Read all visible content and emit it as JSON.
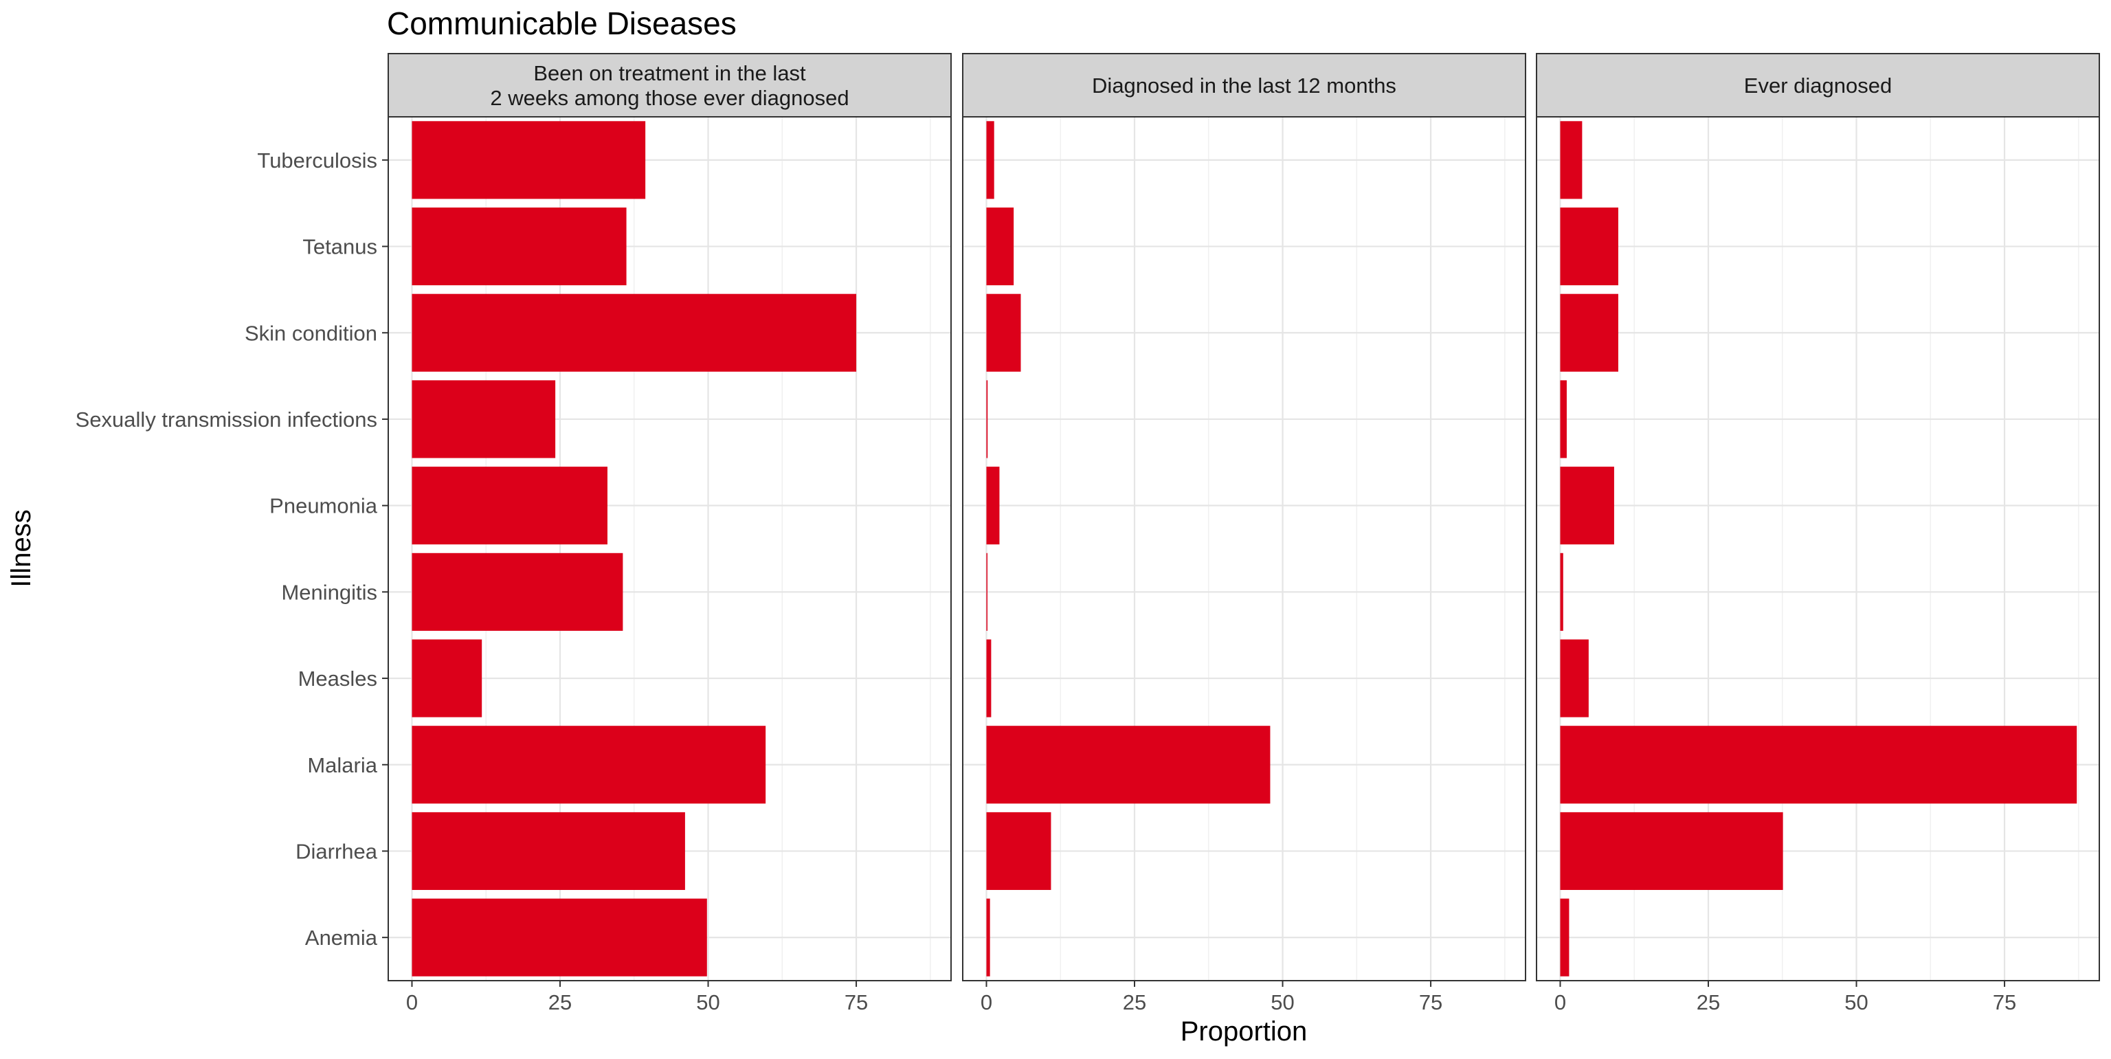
{
  "chart_data": {
    "type": "bar",
    "orientation": "horizontal",
    "title": "Communicable Diseases",
    "xlabel": "Proportion",
    "ylabel": "Illness",
    "xlim": [
      -4,
      91
    ],
    "x_ticks": [
      0,
      25,
      50,
      75
    ],
    "categories": [
      "Anemia",
      "Diarrhea",
      "Malaria",
      "Measles",
      "Meningitis",
      "Pneumonia",
      "Sexually transmission infections",
      "Skin condition",
      "Tetanus",
      "Tuberculosis"
    ],
    "bar_color": "#DC001A",
    "strip_fill": "#D3D3D3",
    "grid": true,
    "panels": [
      {
        "name": "Been on treatment in the last 2 weeks among those ever diagnosed",
        "strip_lines": [
          "Been on treatment in the last",
          "2 weeks among those ever diagnosed"
        ],
        "values": [
          49.8,
          46.1,
          59.7,
          11.8,
          35.6,
          33.0,
          24.2,
          75.0,
          36.2,
          39.4
        ]
      },
      {
        "name": "Diagnosed in the last 12 months",
        "strip_lines": [
          "Diagnosed in the last 12 months"
        ],
        "values": [
          0.6,
          10.9,
          47.9,
          0.8,
          0.1,
          2.2,
          0.2,
          5.8,
          4.6,
          1.3
        ]
      },
      {
        "name": "Ever diagnosed",
        "strip_lines": [
          "Ever diagnosed"
        ],
        "values": [
          1.5,
          37.6,
          87.2,
          4.8,
          0.5,
          9.1,
          1.1,
          9.8,
          9.8,
          3.7
        ]
      }
    ]
  }
}
